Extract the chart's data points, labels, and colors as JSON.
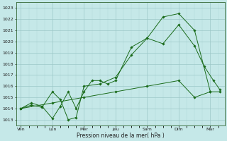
{
  "xlabel": "Pression niveau de la mer( hPa )",
  "ylim": [
    1012.5,
    1023.5
  ],
  "xlim": [
    -0.15,
    6.45
  ],
  "yticks": [
    1013,
    1014,
    1015,
    1016,
    1017,
    1018,
    1019,
    1020,
    1021,
    1022,
    1023
  ],
  "xtick_labels": [
    "Ven",
    "Lun",
    "Mer",
    "Jeu",
    "Sam",
    "Dim",
    "Mar"
  ],
  "xtick_positions": [
    0,
    1,
    2,
    3,
    4,
    5,
    6
  ],
  "bg_color": "#c5e8e8",
  "grid_color_major": "#9cc8c8",
  "grid_color_minor": "#b0d8d8",
  "line_color": "#1a6b1a",
  "series": [
    {
      "x": [
        0,
        0.33,
        0.67,
        1.0,
        1.25,
        1.5,
        1.75,
        2.0,
        2.25,
        2.5,
        2.75,
        3.0,
        3.5,
        4.0,
        4.5,
        5.0,
        5.5,
        6.0
      ],
      "y": [
        1014.0,
        1014.5,
        1014.2,
        1013.1,
        1014.2,
        1015.5,
        1014.0,
        1015.5,
        1016.5,
        1016.5,
        1016.2,
        1016.5,
        1019.5,
        1020.3,
        1022.2,
        1022.5,
        1021.0,
        1015.5
      ]
    },
    {
      "x": [
        0,
        0.33,
        0.67,
        1.0,
        1.25,
        1.5,
        1.75,
        2.0,
        2.5,
        3.0,
        3.5,
        4.0,
        4.5,
        5.0,
        5.5,
        5.8,
        6.1,
        6.3
      ],
      "y": [
        1014.0,
        1014.3,
        1014.1,
        1015.5,
        1014.8,
        1013.0,
        1013.2,
        1016.0,
        1016.2,
        1016.8,
        1018.8,
        1020.3,
        1019.8,
        1021.5,
        1019.6,
        1017.8,
        1016.5,
        1015.7
      ]
    },
    {
      "x": [
        0,
        1.0,
        2.0,
        3.0,
        4.0,
        5.0,
        5.5,
        6.0,
        6.3
      ],
      "y": [
        1014.0,
        1014.5,
        1015.0,
        1015.5,
        1016.0,
        1016.5,
        1015.0,
        1015.5,
        1015.5
      ]
    }
  ]
}
